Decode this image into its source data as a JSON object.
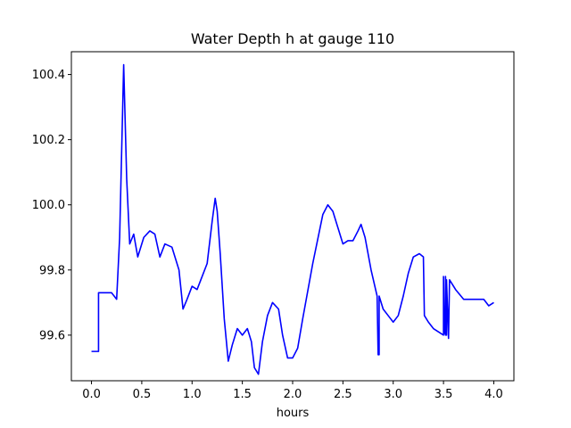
{
  "chart_data": {
    "type": "line",
    "title": "Water Depth h at gauge 110",
    "xlabel": "hours",
    "ylabel": "",
    "xlim": [
      -0.2,
      4.2
    ],
    "ylim": [
      99.46,
      100.47
    ],
    "xticks": [
      0.0,
      0.5,
      1.0,
      1.5,
      2.0,
      2.5,
      3.0,
      3.5,
      4.0
    ],
    "xtick_labels": [
      "0.0",
      "0.5",
      "1.0",
      "1.5",
      "2.0",
      "2.5",
      "3.0",
      "3.5",
      "4.0"
    ],
    "yticks": [
      99.6,
      99.8,
      100.0,
      100.2,
      100.4
    ],
    "ytick_labels": [
      "99.6",
      "99.8",
      "100.0",
      "100.2",
      "100.4"
    ],
    "grid": false,
    "series": [
      {
        "color": "#0000ff",
        "x": [
          0.0,
          0.07,
          0.07,
          0.2,
          0.25,
          0.28,
          0.32,
          0.35,
          0.38,
          0.42,
          0.46,
          0.52,
          0.58,
          0.63,
          0.68,
          0.73,
          0.8,
          0.87,
          0.91,
          0.95,
          1.0,
          1.05,
          1.1,
          1.15,
          1.2,
          1.23,
          1.25,
          1.28,
          1.32,
          1.36,
          1.4,
          1.45,
          1.5,
          1.55,
          1.59,
          1.62,
          1.66,
          1.7,
          1.75,
          1.8,
          1.86,
          1.9,
          1.95,
          2.0,
          2.05,
          2.1,
          2.2,
          2.3,
          2.35,
          2.4,
          2.45,
          2.5,
          2.55,
          2.6,
          2.65,
          2.68,
          2.72,
          2.78,
          2.84,
          2.85,
          2.86,
          2.86,
          2.9,
          2.95,
          3.0,
          3.05,
          3.1,
          3.15,
          3.2,
          3.26,
          3.3,
          3.31,
          3.35,
          3.4,
          3.45,
          3.5,
          3.5,
          3.51,
          3.52,
          3.52,
          3.53,
          3.53,
          3.55,
          3.56,
          3.58,
          3.62,
          3.7,
          3.8,
          3.85,
          3.9,
          3.95,
          4.0
        ],
        "y": [
          99.55,
          99.55,
          99.73,
          99.73,
          99.71,
          99.9,
          100.43,
          100.08,
          99.88,
          99.91,
          99.84,
          99.9,
          99.92,
          99.91,
          99.84,
          99.88,
          99.87,
          99.8,
          99.68,
          99.71,
          99.75,
          99.74,
          99.78,
          99.82,
          99.95,
          100.02,
          99.98,
          99.85,
          99.65,
          99.52,
          99.57,
          99.62,
          99.6,
          99.62,
          99.58,
          99.5,
          99.48,
          99.58,
          99.66,
          99.7,
          99.68,
          99.6,
          99.53,
          99.53,
          99.56,
          99.65,
          99.82,
          99.97,
          100.0,
          99.98,
          99.93,
          99.88,
          99.89,
          99.89,
          99.92,
          99.94,
          99.9,
          99.8,
          99.72,
          99.54,
          99.54,
          99.72,
          99.68,
          99.66,
          99.64,
          99.66,
          99.72,
          99.79,
          99.84,
          99.85,
          99.84,
          99.66,
          99.64,
          99.62,
          99.61,
          99.6,
          99.78,
          99.61,
          99.6,
          99.78,
          99.6,
          99.77,
          99.59,
          99.77,
          99.76,
          99.74,
          99.71,
          99.71,
          99.71,
          99.71,
          99.69,
          99.7
        ]
      }
    ]
  }
}
